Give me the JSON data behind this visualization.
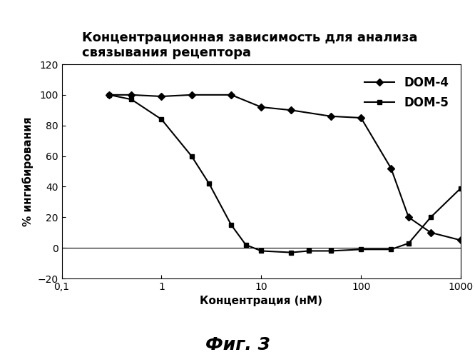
{
  "title_line1": "Концентрационная зависимость для анализа",
  "title_line2": "связывания рецептора",
  "xlabel": "Концентрация (нМ)",
  "ylabel": "% ингибирования",
  "caption": "Фиг. 3",
  "xlim": [
    0.1,
    1000
  ],
  "ylim": [
    -20,
    120
  ],
  "yticks": [
    -20,
    0,
    20,
    40,
    60,
    80,
    100,
    120
  ],
  "xticks": [
    0.1,
    1,
    10,
    100,
    1000
  ],
  "xtick_labels": [
    "0,1",
    "1",
    "10",
    "100",
    "1000"
  ],
  "dom4_x": [
    0.3,
    0.5,
    1.0,
    2.0,
    5.0,
    10.0,
    20.0,
    50.0,
    100.0,
    200.0,
    300.0,
    500.0,
    1000.0
  ],
  "dom4_y": [
    100,
    100,
    99,
    100,
    100,
    92,
    90,
    86,
    85,
    52,
    20,
    10,
    5
  ],
  "dom5_x": [
    0.3,
    0.5,
    1.0,
    2.0,
    3.0,
    5.0,
    7.0,
    10.0,
    20.0,
    30.0,
    50.0,
    100.0,
    200.0,
    300.0,
    500.0,
    1000.0
  ],
  "dom5_y": [
    100,
    97,
    84,
    60,
    42,
    15,
    2,
    -2,
    -3,
    -2,
    -2,
    -1,
    -1,
    3,
    20,
    39
  ],
  "dom4_color": "#000000",
  "dom5_color": "#000000",
  "dom4_marker": "D",
  "dom5_marker": "s",
  "dom4_label": "DOM-4",
  "dom5_label": "DOM-5",
  "line_width": 1.5,
  "marker_size": 5,
  "title_fontsize": 13,
  "label_fontsize": 11,
  "tick_fontsize": 10,
  "legend_fontsize": 12,
  "caption_fontsize": 18,
  "background_color": "#ffffff"
}
